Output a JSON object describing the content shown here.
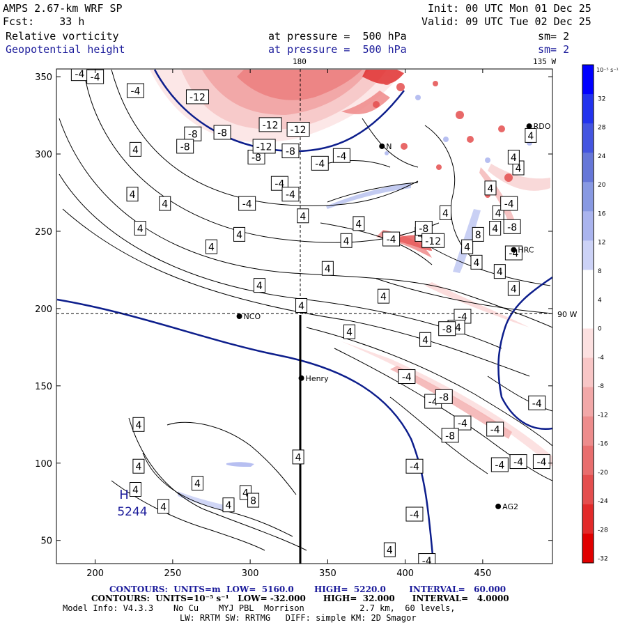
{
  "header": {
    "model": "AMPS 2.67-km WRF SP",
    "init": "Init: 00 UTC Mon 01 Dec 25",
    "fcst": "Fcst:    33 h",
    "valid": "Valid: 09 UTC Tue 02 Dec 25",
    "field1": "Relative vorticity",
    "field1_level": "at pressure =  500 hPa",
    "field1_sm": "sm= 2",
    "field2": "Geopotential height",
    "field2_level": "at pressure =  500 hPa",
    "field2_sm": "sm= 2"
  },
  "map": {
    "lon_labels": {
      "top": "180",
      "top_right": "135 W",
      "right": "90 W"
    },
    "x_ticks": [
      "200",
      "250",
      "300",
      "350",
      "400",
      "450"
    ],
    "y_ticks": [
      "350",
      "300",
      "250",
      "200",
      "150",
      "100",
      "50"
    ],
    "stations": [
      {
        "name": "NCO",
        "x": 293,
        "y": 195
      },
      {
        "name": "Henry",
        "x": 333,
        "y": 155
      },
      {
        "name": "HRC",
        "x": 470,
        "y": 238
      },
      {
        "name": "AG2",
        "x": 460,
        "y": 72
      },
      {
        "name": "RDO",
        "x": 480,
        "y": 318
      },
      {
        "name": "N",
        "x": 385,
        "y": 305
      }
    ],
    "height_label": {
      "letter": "H",
      "value": "5244"
    },
    "contour_labels_4": [
      {
        "x": 226,
        "y": 303
      },
      {
        "x": 224,
        "y": 274
      },
      {
        "x": 245,
        "y": 268
      },
      {
        "x": 229,
        "y": 252
      },
      {
        "x": 275,
        "y": 240
      },
      {
        "x": 293,
        "y": 248
      },
      {
        "x": 306,
        "y": 215
      },
      {
        "x": 333,
        "y": 202
      },
      {
        "x": 334,
        "y": 260
      },
      {
        "x": 350,
        "y": 226
      },
      {
        "x": 364,
        "y": 185
      },
      {
        "x": 386,
        "y": 208
      },
      {
        "x": 413,
        "y": 180
      },
      {
        "x": 370,
        "y": 255
      },
      {
        "x": 362,
        "y": 244
      },
      {
        "x": 410,
        "y": 248
      },
      {
        "x": 426,
        "y": 262
      },
      {
        "x": 455,
        "y": 278
      },
      {
        "x": 461,
        "y": 224
      },
      {
        "x": 470,
        "y": 213
      },
      {
        "x": 481,
        "y": 312
      },
      {
        "x": 473,
        "y": 291
      },
      {
        "x": 470,
        "y": 298
      },
      {
        "x": 460,
        "y": 262
      },
      {
        "x": 440,
        "y": 240
      },
      {
        "x": 446,
        "y": 230
      },
      {
        "x": 458,
        "y": 252
      },
      {
        "x": 228,
        "y": 125
      },
      {
        "x": 228,
        "y": 98
      },
      {
        "x": 226,
        "y": 83
      },
      {
        "x": 266,
        "y": 87
      },
      {
        "x": 297,
        "y": 81
      },
      {
        "x": 286,
        "y": 73
      },
      {
        "x": 244,
        "y": 72
      },
      {
        "x": 331,
        "y": 104
      },
      {
        "x": 390,
        "y": 44
      }
    ],
    "contour_labels_neg4": [
      {
        "x": 190,
        "y": 352
      },
      {
        "x": 200,
        "y": 350
      },
      {
        "x": 226,
        "y": 341
      },
      {
        "x": 298,
        "y": 268
      },
      {
        "x": 319,
        "y": 281
      },
      {
        "x": 326,
        "y": 274
      },
      {
        "x": 345,
        "y": 294
      },
      {
        "x": 359,
        "y": 299
      },
      {
        "x": 401,
        "y": 156
      },
      {
        "x": 418,
        "y": 140
      },
      {
        "x": 437,
        "y": 195
      },
      {
        "x": 433,
        "y": 188
      },
      {
        "x": 437,
        "y": 126
      },
      {
        "x": 458,
        "y": 122
      },
      {
        "x": 461,
        "y": 99
      },
      {
        "x": 406,
        "y": 98
      },
      {
        "x": 406,
        "y": 67
      },
      {
        "x": 414,
        "y": 37
      },
      {
        "x": 473,
        "y": 101
      },
      {
        "x": 488,
        "y": 101
      },
      {
        "x": 485,
        "y": 139
      },
      {
        "x": 467,
        "y": 268
      },
      {
        "x": 470,
        "y": 236
      },
      {
        "x": 391,
        "y": 245
      }
    ],
    "contour_labels_neg8": [
      {
        "x": 263,
        "y": 313
      },
      {
        "x": 282,
        "y": 314
      },
      {
        "x": 304,
        "y": 298
      },
      {
        "x": 326,
        "y": 302
      },
      {
        "x": 412,
        "y": 252
      },
      {
        "x": 427,
        "y": 187
      },
      {
        "x": 425,
        "y": 143
      },
      {
        "x": 429,
        "y": 118
      },
      {
        "x": 469,
        "y": 253
      },
      {
        "x": 258,
        "y": 305
      }
    ],
    "contour_labels_neg12": [
      {
        "x": 266,
        "y": 337
      },
      {
        "x": 313,
        "y": 319
      },
      {
        "x": 331,
        "y": 316
      },
      {
        "x": 309,
        "y": 305
      },
      {
        "x": 418,
        "y": 244
      }
    ],
    "contour_labels_other": [
      {
        "text": "8",
        "x": 447,
        "y": 248
      },
      {
        "text": "8",
        "x": 302,
        "y": 76
      }
    ]
  },
  "colorbar": {
    "units": "10⁻⁵ s⁻¹",
    "labels": [
      "32",
      "28",
      "24",
      "20",
      "16",
      "12",
      "8",
      "4",
      "0",
      "-4",
      "-8",
      "-12",
      "-16",
      "-20",
      "-24",
      "-28",
      "-32"
    ],
    "colors": [
      "#0000ff",
      "#2233ee",
      "#4455e0",
      "#6677d8",
      "#8899e2",
      "#aab4ee",
      "#ccd2f6",
      "#ffffff",
      "#ffffff",
      "#fce0e0",
      "#f8c6c6",
      "#f2a8a8",
      "#ed8c8c",
      "#e86e6e",
      "#e44e4e",
      "#e22a2a",
      "#e00000"
    ]
  },
  "footer": {
    "line1": "CONTOURS:  UNITS=m  LOW=  5160.0       HIGH=  5220.0        INTERVAL=   60.000",
    "line2": "CONTOURS:  UNITS=10⁻⁵ s⁻¹   LOW= -32.000      HIGH=  32.000      INTERVAL=   4.0000",
    "line3": "Model Info: V4.3.3    No Cu    MYJ PBL  Morrison           2.7 km,  60 levels,",
    "line4": "LW: RRTM SW: RRTMG   DIFF: simple KM: 2D Smagor"
  }
}
